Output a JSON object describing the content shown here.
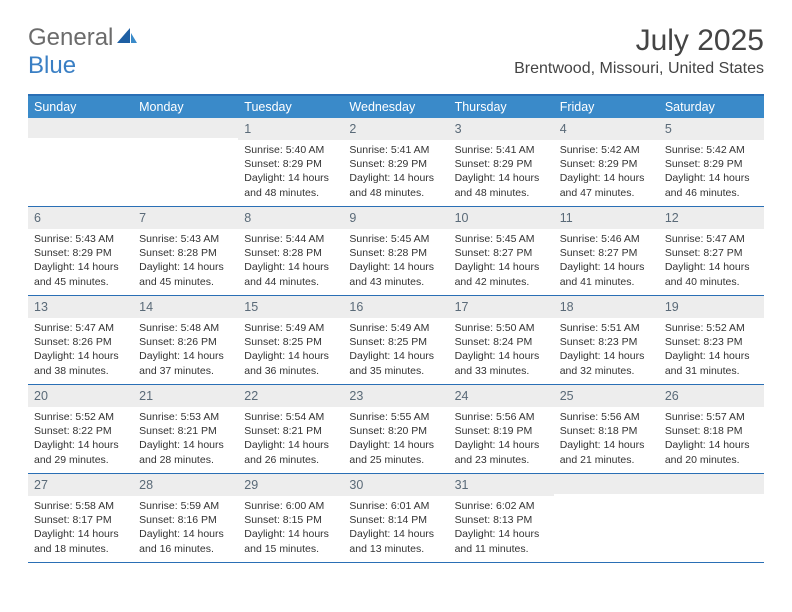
{
  "brand": {
    "part1": "General",
    "part2": "Blue"
  },
  "title": "July 2025",
  "location": "Brentwood, Missouri, United States",
  "colors": {
    "header_bar": "#3a8ac9",
    "rule": "#2a6fb5",
    "daynum_bg": "#ededed",
    "daynum_fg": "#5a6a78",
    "text": "#333333",
    "logo_gray": "#6b6b6b",
    "logo_blue": "#3a7fc4"
  },
  "weekdays": [
    "Sunday",
    "Monday",
    "Tuesday",
    "Wednesday",
    "Thursday",
    "Friday",
    "Saturday"
  ],
  "layout": {
    "columns": 7,
    "first_weekday_index": 2,
    "total_days": 31
  },
  "days": {
    "1": {
      "sunrise": "5:40 AM",
      "sunset": "8:29 PM",
      "daylight": "14 hours and 48 minutes."
    },
    "2": {
      "sunrise": "5:41 AM",
      "sunset": "8:29 PM",
      "daylight": "14 hours and 48 minutes."
    },
    "3": {
      "sunrise": "5:41 AM",
      "sunset": "8:29 PM",
      "daylight": "14 hours and 48 minutes."
    },
    "4": {
      "sunrise": "5:42 AM",
      "sunset": "8:29 PM",
      "daylight": "14 hours and 47 minutes."
    },
    "5": {
      "sunrise": "5:42 AM",
      "sunset": "8:29 PM",
      "daylight": "14 hours and 46 minutes."
    },
    "6": {
      "sunrise": "5:43 AM",
      "sunset": "8:29 PM",
      "daylight": "14 hours and 45 minutes."
    },
    "7": {
      "sunrise": "5:43 AM",
      "sunset": "8:28 PM",
      "daylight": "14 hours and 45 minutes."
    },
    "8": {
      "sunrise": "5:44 AM",
      "sunset": "8:28 PM",
      "daylight": "14 hours and 44 minutes."
    },
    "9": {
      "sunrise": "5:45 AM",
      "sunset": "8:28 PM",
      "daylight": "14 hours and 43 minutes."
    },
    "10": {
      "sunrise": "5:45 AM",
      "sunset": "8:27 PM",
      "daylight": "14 hours and 42 minutes."
    },
    "11": {
      "sunrise": "5:46 AM",
      "sunset": "8:27 PM",
      "daylight": "14 hours and 41 minutes."
    },
    "12": {
      "sunrise": "5:47 AM",
      "sunset": "8:27 PM",
      "daylight": "14 hours and 40 minutes."
    },
    "13": {
      "sunrise": "5:47 AM",
      "sunset": "8:26 PM",
      "daylight": "14 hours and 38 minutes."
    },
    "14": {
      "sunrise": "5:48 AM",
      "sunset": "8:26 PM",
      "daylight": "14 hours and 37 minutes."
    },
    "15": {
      "sunrise": "5:49 AM",
      "sunset": "8:25 PM",
      "daylight": "14 hours and 36 minutes."
    },
    "16": {
      "sunrise": "5:49 AM",
      "sunset": "8:25 PM",
      "daylight": "14 hours and 35 minutes."
    },
    "17": {
      "sunrise": "5:50 AM",
      "sunset": "8:24 PM",
      "daylight": "14 hours and 33 minutes."
    },
    "18": {
      "sunrise": "5:51 AM",
      "sunset": "8:23 PM",
      "daylight": "14 hours and 32 minutes."
    },
    "19": {
      "sunrise": "5:52 AM",
      "sunset": "8:23 PM",
      "daylight": "14 hours and 31 minutes."
    },
    "20": {
      "sunrise": "5:52 AM",
      "sunset": "8:22 PM",
      "daylight": "14 hours and 29 minutes."
    },
    "21": {
      "sunrise": "5:53 AM",
      "sunset": "8:21 PM",
      "daylight": "14 hours and 28 minutes."
    },
    "22": {
      "sunrise": "5:54 AM",
      "sunset": "8:21 PM",
      "daylight": "14 hours and 26 minutes."
    },
    "23": {
      "sunrise": "5:55 AM",
      "sunset": "8:20 PM",
      "daylight": "14 hours and 25 minutes."
    },
    "24": {
      "sunrise": "5:56 AM",
      "sunset": "8:19 PM",
      "daylight": "14 hours and 23 minutes."
    },
    "25": {
      "sunrise": "5:56 AM",
      "sunset": "8:18 PM",
      "daylight": "14 hours and 21 minutes."
    },
    "26": {
      "sunrise": "5:57 AM",
      "sunset": "8:18 PM",
      "daylight": "14 hours and 20 minutes."
    },
    "27": {
      "sunrise": "5:58 AM",
      "sunset": "8:17 PM",
      "daylight": "14 hours and 18 minutes."
    },
    "28": {
      "sunrise": "5:59 AM",
      "sunset": "8:16 PM",
      "daylight": "14 hours and 16 minutes."
    },
    "29": {
      "sunrise": "6:00 AM",
      "sunset": "8:15 PM",
      "daylight": "14 hours and 15 minutes."
    },
    "30": {
      "sunrise": "6:01 AM",
      "sunset": "8:14 PM",
      "daylight": "14 hours and 13 minutes."
    },
    "31": {
      "sunrise": "6:02 AM",
      "sunset": "8:13 PM",
      "daylight": "14 hours and 11 minutes."
    }
  },
  "labels": {
    "sunrise": "Sunrise: ",
    "sunset": "Sunset: ",
    "daylight": "Daylight: "
  }
}
